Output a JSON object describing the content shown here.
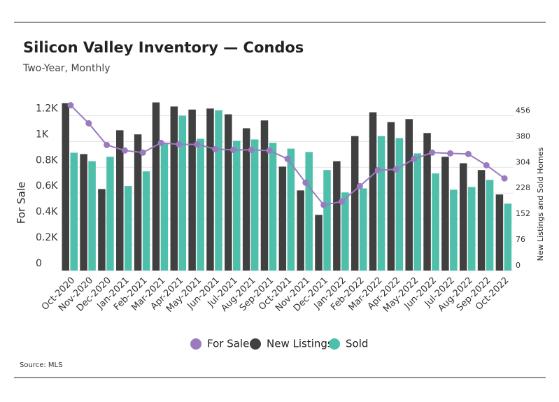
{
  "chart_data": {
    "type": "bar",
    "title": "Silicon Valley Inventory — Condos",
    "subtitle": "Two-Year, Monthly",
    "y_label": "For Sale",
    "y2_label": "New Listings and Sold Homes",
    "source": "Source: MLS",
    "categories": [
      "Oct-2020",
      "Nov-2020",
      "Dec-2020",
      "Jan-2021",
      "Feb-2021",
      "Mar-2021",
      "Apr-2021",
      "May-2021",
      "Jun-2021",
      "Jul-2021",
      "Aug-2021",
      "Sep-2021",
      "Oct-2021",
      "Nov-2021",
      "Dec-2021",
      "Jan-2022",
      "Feb-2022",
      "Mar-2022",
      "Apr-2022",
      "May-2022",
      "Jun-2022",
      "Jul-2022",
      "Aug-2022",
      "Sep-2022",
      "Oct-2022"
    ],
    "series": [
      {
        "name": "For Sale",
        "type": "line",
        "color": "#9b7bbf",
        "values": [
          1281,
          1141,
          973,
          930,
          914,
          989,
          978,
          978,
          941,
          935,
          935,
          930,
          865,
          681,
          508,
          535,
          654,
          778,
          784,
          865,
          914,
          908,
          903,
          816,
          714
        ]
      },
      {
        "name": "New Listings",
        "type": "bar",
        "axis": "y2",
        "color": "#404040",
        "values": [
          493,
          343,
          240,
          413,
          401,
          495,
          483,
          474,
          477,
          460,
          419,
          442,
          306,
          236,
          164,
          322,
          396,
          466,
          437,
          446,
          405,
          335,
          316,
          296,
          224
        ]
      },
      {
        "name": "Sold",
        "type": "bar",
        "axis": "y2",
        "color": "#4dbfaa",
        "values": [
          347,
          322,
          335,
          249,
          292,
          374,
          456,
          388,
          472,
          382,
          386,
          376,
          359,
          349,
          296,
          230,
          242,
          396,
          390,
          345,
          286,
          238,
          246,
          267,
          197
        ]
      }
    ],
    "ylim": [
      0,
      1300
    ],
    "yticks": [
      0,
      {
        "value": 200,
        "label": "0.2K"
      },
      {
        "value": 400,
        "label": "0.4K"
      },
      {
        "value": 600,
        "label": "0.6K"
      },
      {
        "value": 800,
        "label": "0.8K"
      },
      {
        "value": 1000,
        "label": "1K"
      },
      {
        "value": 1200,
        "label": "1.2K"
      }
    ],
    "y2lim": [
      0,
      494
    ],
    "y2ticks": [
      0,
      76,
      152,
      228,
      304,
      380,
      456
    ],
    "grid": true
  }
}
